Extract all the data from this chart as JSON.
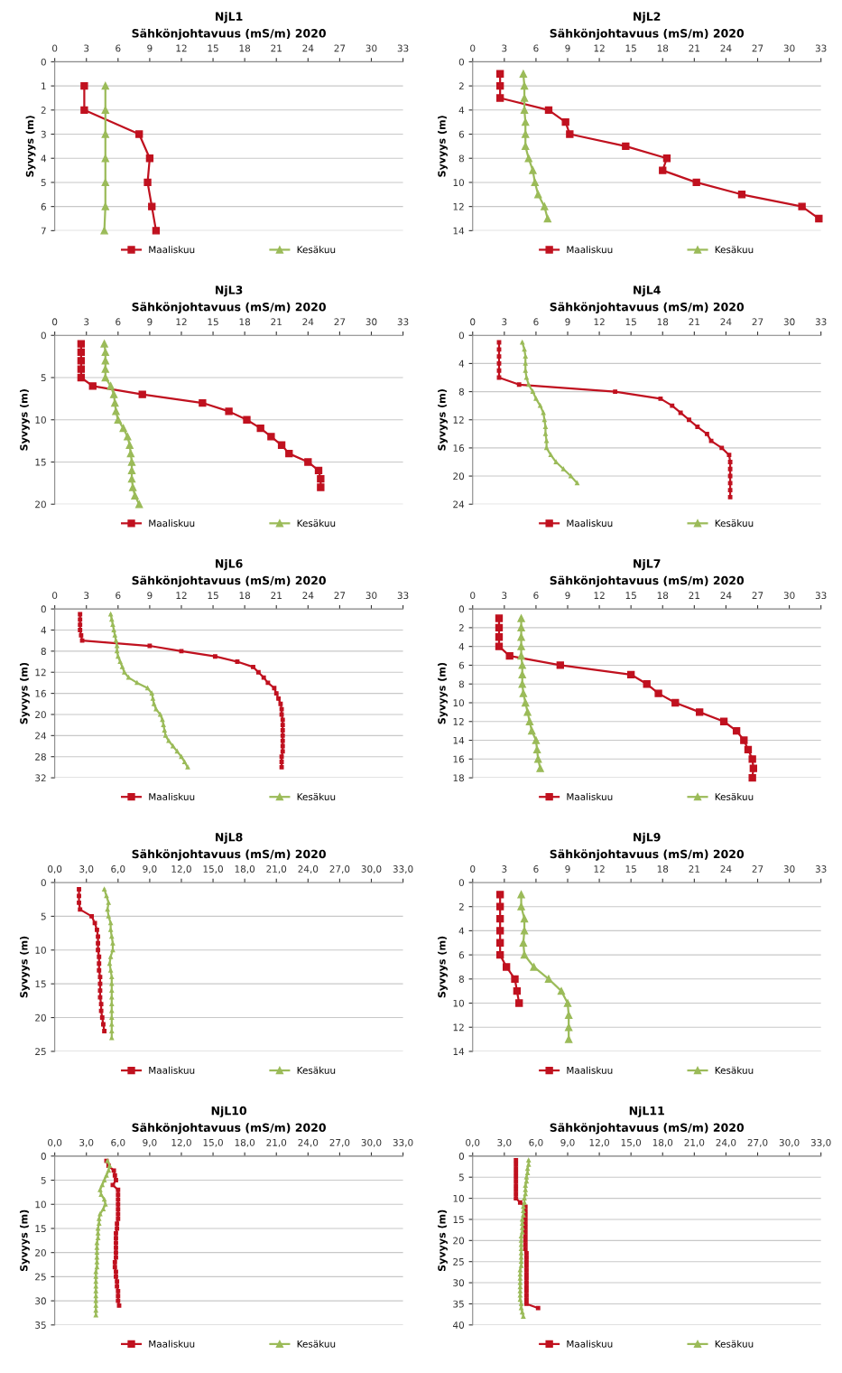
{
  "chart_data": [
    {
      "type": "line",
      "title": "NjL1",
      "subtitle": "Sähkönjohtavuus (mS/m) 2020",
      "ylabel": "Syvyys (m)",
      "xlim": [
        0,
        33
      ],
      "xticks": [
        0,
        3,
        6,
        9,
        12,
        15,
        18,
        21,
        24,
        27,
        30,
        33
      ],
      "ylim": [
        7,
        0
      ],
      "yticks": [
        0,
        1,
        2,
        3,
        4,
        5,
        6,
        7
      ],
      "grid": "y",
      "legend": "bottom",
      "series": [
        {
          "name": "Maaliskuu",
          "color": "#c0111f",
          "marker": "square",
          "x": [
            2.8,
            2.8,
            8,
            9,
            8.8,
            9.2,
            9.6
          ],
          "values": [
            1,
            2,
            3,
            4,
            5,
            6,
            7
          ]
        },
        {
          "name": "Kesäkuu",
          "color": "#9bbb59",
          "marker": "triangle",
          "x": [
            4.8,
            4.8,
            4.8,
            4.8,
            4.8,
            4.8,
            4.7
          ],
          "values": [
            1,
            2,
            3,
            4,
            5,
            6,
            7
          ]
        }
      ]
    },
    {
      "type": "line",
      "title": "NjL2",
      "subtitle": "Sähkönjohtavuus (mS/m) 2020",
      "ylabel": "Syvyys (m)",
      "xlim": [
        0,
        33
      ],
      "xticks": [
        0,
        3,
        6,
        9,
        12,
        15,
        18,
        21,
        24,
        27,
        30,
        33
      ],
      "ylim": [
        14,
        0
      ],
      "yticks": [
        0,
        2,
        4,
        6,
        8,
        10,
        12,
        14
      ],
      "grid": "y",
      "legend": "bottom",
      "series": [
        {
          "name": "Maaliskuu",
          "color": "#c0111f",
          "marker": "square",
          "x": [
            2.6,
            2.6,
            2.6,
            7.2,
            8.8,
            9.2,
            14.5,
            18.4,
            18.0,
            21.2,
            25.5,
            31.2,
            32.8
          ],
          "values": [
            1,
            2,
            3,
            4,
            5,
            6,
            7,
            8,
            9,
            10,
            11,
            12,
            13
          ]
        },
        {
          "name": "Kesäkuu",
          "color": "#9bbb59",
          "marker": "triangle",
          "x": [
            4.8,
            4.9,
            4.9,
            4.9,
            5.0,
            5.0,
            5.0,
            5.3,
            5.7,
            5.9,
            6.2,
            6.8,
            7.1
          ],
          "values": [
            1,
            2,
            3,
            4,
            5,
            6,
            7,
            8,
            9,
            10,
            11,
            12,
            13
          ]
        }
      ]
    },
    {
      "type": "line",
      "title": "NjL3",
      "subtitle": "Sähkönjohtavuus (mS/m) 2020",
      "ylabel": "Syvyys (m)",
      "xlim": [
        0,
        33
      ],
      "xticks": [
        0,
        3,
        6,
        9,
        12,
        15,
        18,
        21,
        24,
        27,
        30,
        33
      ],
      "ylim": [
        20,
        0
      ],
      "yticks": [
        0,
        5,
        10,
        15,
        20
      ],
      "grid": "y",
      "legend": "bottom",
      "series": [
        {
          "name": "Maaliskuu",
          "color": "#c0111f",
          "marker": "square",
          "x": [
            2.5,
            2.5,
            2.5,
            2.5,
            2.5,
            3.6,
            8.3,
            14.0,
            16.5,
            18.2,
            19.5,
            20.5,
            21.5,
            22.2,
            24.0,
            25.0,
            25.2,
            25.2
          ],
          "values": [
            1,
            2,
            3,
            4,
            5,
            6,
            7,
            8,
            9,
            10,
            11,
            12,
            13,
            14,
            15,
            16,
            17,
            18
          ]
        },
        {
          "name": "Kesäkuu",
          "color": "#9bbb59",
          "marker": "triangle",
          "x": [
            4.7,
            4.8,
            4.8,
            4.8,
            4.8,
            5.3,
            5.6,
            5.7,
            5.8,
            6.0,
            6.5,
            6.9,
            7.1,
            7.2,
            7.3,
            7.3,
            7.3,
            7.4,
            7.6,
            8.0
          ],
          "values": [
            1,
            2,
            3,
            4,
            5,
            6,
            7,
            8,
            9,
            10,
            11,
            12,
            13,
            14,
            15,
            16,
            17,
            18,
            19,
            20
          ]
        }
      ]
    },
    {
      "type": "line",
      "title": "NjL4",
      "subtitle": "Sähkönjohtavuus (mS/m) 2020",
      "ylabel": "Syvyys (m)",
      "xlim": [
        0,
        33
      ],
      "xticks": [
        0,
        3,
        6,
        9,
        12,
        15,
        18,
        21,
        24,
        27,
        30,
        33
      ],
      "ylim": [
        24,
        0
      ],
      "yticks": [
        0,
        4,
        8,
        12,
        16,
        20,
        24
      ],
      "grid": "y",
      "legend": "bottom",
      "series": [
        {
          "name": "Maaliskuu",
          "color": "#c0111f",
          "marker": "square",
          "x": [
            2.5,
            2.5,
            2.5,
            2.5,
            2.5,
            2.5,
            4.4,
            13.5,
            17.8,
            18.9,
            19.7,
            20.5,
            21.3,
            22.2,
            22.6,
            23.6,
            24.3,
            24.4,
            24.4,
            24.4,
            24.4,
            24.4,
            24.4
          ],
          "values": [
            1,
            2,
            3,
            4,
            5,
            6,
            7,
            8,
            9,
            10,
            11,
            12,
            13,
            14,
            15,
            16,
            17,
            18,
            19,
            20,
            21,
            22,
            23
          ]
        },
        {
          "name": "Kesäkuu",
          "color": "#9bbb59",
          "marker": "triangle",
          "x": [
            4.7,
            4.9,
            5.0,
            5.0,
            5.0,
            5.1,
            5.3,
            5.7,
            6.0,
            6.4,
            6.7,
            6.8,
            6.9,
            6.9,
            7.0,
            7.0,
            7.4,
            7.9,
            8.6,
            9.3,
            9.9
          ],
          "values": [
            1,
            2,
            3,
            4,
            5,
            6,
            7,
            8,
            9,
            10,
            11,
            12,
            13,
            14,
            15,
            16,
            17,
            18,
            19,
            20,
            21
          ]
        }
      ]
    },
    {
      "type": "line",
      "title": "NjL6",
      "subtitle": "Sähkönjohtavuus (mS/m) 2020",
      "ylabel": "Syvyys (m)",
      "xlim": [
        0,
        33
      ],
      "xticks": [
        0,
        3,
        6,
        9,
        12,
        15,
        18,
        21,
        24,
        27,
        30,
        33
      ],
      "ylim": [
        32,
        0
      ],
      "yticks": [
        0,
        4,
        8,
        12,
        16,
        20,
        24,
        28,
        32
      ],
      "grid": "y",
      "legend": "bottom",
      "series": [
        {
          "name": "Maaliskuu",
          "color": "#c0111f",
          "marker": "square",
          "x": [
            2.4,
            2.4,
            2.4,
            2.4,
            2.5,
            2.6,
            9.0,
            12.0,
            15.2,
            17.3,
            18.8,
            19.3,
            19.8,
            20.2,
            20.8,
            21.0,
            21.2,
            21.4,
            21.5,
            21.5,
            21.6,
            21.6,
            21.6,
            21.6,
            21.6,
            21.6,
            21.6,
            21.5,
            21.5,
            21.5
          ],
          "values": [
            1,
            2,
            3,
            4,
            5,
            6,
            7,
            8,
            9,
            10,
            11,
            12,
            13,
            14,
            15,
            16,
            17,
            18,
            19,
            20,
            21,
            22,
            23,
            24,
            25,
            26,
            27,
            28,
            29,
            30
          ]
        },
        {
          "name": "Kesäkuu",
          "color": "#9bbb59",
          "marker": "triangle",
          "x": [
            5.3,
            5.4,
            5.5,
            5.6,
            5.7,
            5.8,
            5.9,
            5.9,
            6.0,
            6.2,
            6.4,
            6.6,
            7.0,
            7.8,
            8.8,
            9.2,
            9.3,
            9.4,
            9.6,
            10.0,
            10.2,
            10.3,
            10.4,
            10.5,
            10.8,
            11.2,
            11.6,
            12.0,
            12.3,
            12.6
          ],
          "values": [
            1,
            2,
            3,
            4,
            5,
            6,
            7,
            8,
            9,
            10,
            11,
            12,
            13,
            14,
            15,
            16,
            17,
            18,
            19,
            20,
            21,
            22,
            23,
            24,
            25,
            26,
            27,
            28,
            29,
            30
          ]
        }
      ]
    },
    {
      "type": "line",
      "title": "NjL7",
      "subtitle": "Sähkönjohtavuus (mS/m) 2020",
      "ylabel": "Syvyys (m)",
      "xlim": [
        0,
        33
      ],
      "xticks": [
        0,
        3,
        6,
        9,
        12,
        15,
        18,
        21,
        24,
        27,
        30,
        33
      ],
      "ylim": [
        18,
        0
      ],
      "yticks": [
        0,
        2,
        4,
        6,
        8,
        10,
        12,
        14,
        16,
        18
      ],
      "grid": "y",
      "legend": "bottom",
      "series": [
        {
          "name": "Maaliskuu",
          "color": "#c0111f",
          "marker": "square",
          "x": [
            2.5,
            2.5,
            2.5,
            2.5,
            3.5,
            8.3,
            15.0,
            16.5,
            17.6,
            19.2,
            21.5,
            23.8,
            25.0,
            25.7,
            26.1,
            26.5,
            26.6,
            26.5
          ],
          "values": [
            1,
            2,
            3,
            4,
            5,
            6,
            7,
            8,
            9,
            10,
            11,
            12,
            13,
            14,
            15,
            16,
            17,
            18
          ]
        },
        {
          "name": "Kesäkuu",
          "color": "#9bbb59",
          "marker": "triangle",
          "x": [
            4.6,
            4.6,
            4.6,
            4.6,
            4.6,
            4.7,
            4.7,
            4.7,
            4.8,
            5.0,
            5.2,
            5.4,
            5.6,
            6.0,
            6.1,
            6.2,
            6.4
          ],
          "values": [
            1,
            2,
            3,
            4,
            5,
            6,
            7,
            8,
            9,
            10,
            11,
            12,
            13,
            14,
            15,
            16,
            17
          ]
        }
      ]
    },
    {
      "type": "line",
      "title": "NjL8",
      "subtitle": "Sähkönjohtavuus (mS/m) 2020",
      "ylabel": "Syvyys (m)",
      "xlim": [
        0,
        33
      ],
      "xticks": [
        {
          "value": 0,
          "label": "0,0"
        },
        {
          "value": 3,
          "label": "3,0"
        },
        {
          "value": 6,
          "label": "6,0"
        },
        {
          "value": 9,
          "label": "9,0"
        },
        {
          "value": 12,
          "label": "12,0"
        },
        {
          "value": 15,
          "label": "15,0"
        },
        {
          "value": 18,
          "label": "18,0"
        },
        {
          "value": 21,
          "label": "21,0"
        },
        {
          "value": 24,
          "label": "24,0"
        },
        {
          "value": 27,
          "label": "27,0"
        },
        {
          "value": 30,
          "label": "30,0"
        },
        {
          "value": 33,
          "label": "33,0"
        }
      ],
      "ylim": [
        25,
        0
      ],
      "yticks": [
        0,
        5,
        10,
        15,
        20,
        25
      ],
      "grid": "y",
      "legend": "bottom",
      "series": [
        {
          "name": "Maaliskuu",
          "color": "#c0111f",
          "marker": "square",
          "x": [
            2.3,
            2.3,
            2.3,
            2.4,
            3.5,
            3.8,
            4.0,
            4.1,
            4.1,
            4.1,
            4.2,
            4.2,
            4.2,
            4.3,
            4.3,
            4.3,
            4.3,
            4.4,
            4.4,
            4.5,
            4.6,
            4.7
          ],
          "values": [
            1,
            2,
            3,
            4,
            5,
            6,
            7,
            8,
            9,
            10,
            11,
            12,
            13,
            14,
            15,
            16,
            17,
            18,
            19,
            20,
            21,
            22
          ]
        },
        {
          "name": "Kesäkuu",
          "color": "#9bbb59",
          "marker": "triangle",
          "x": [
            4.7,
            4.9,
            5.1,
            5.0,
            5.1,
            5.3,
            5.3,
            5.4,
            5.5,
            5.5,
            5.3,
            5.2,
            5.3,
            5.4,
            5.4,
            5.4,
            5.4,
            5.4,
            5.4,
            5.4,
            5.4,
            5.4,
            5.4
          ],
          "values": [
            1,
            2,
            3,
            4,
            5,
            6,
            7,
            8,
            9,
            10,
            11,
            12,
            13,
            14,
            15,
            16,
            17,
            18,
            19,
            20,
            21,
            22,
            23
          ]
        }
      ]
    },
    {
      "type": "line",
      "title": "NjL9",
      "subtitle": "Sähkönjohtavuus (mS/m) 2020",
      "ylabel": "Syvyys (m)",
      "xlim": [
        0,
        33
      ],
      "xticks": [
        0,
        3,
        6,
        9,
        12,
        15,
        18,
        21,
        24,
        27,
        30,
        33
      ],
      "ylim": [
        14,
        0
      ],
      "yticks": [
        0,
        2,
        4,
        6,
        8,
        10,
        12,
        14
      ],
      "grid": "y",
      "legend": "bottom",
      "series": [
        {
          "name": "Maaliskuu",
          "color": "#c0111f",
          "marker": "square",
          "x": [
            2.6,
            2.6,
            2.6,
            2.6,
            2.6,
            2.6,
            3.2,
            4.0,
            4.2,
            4.4
          ],
          "values": [
            1,
            2,
            3,
            4,
            5,
            6,
            7,
            8,
            9,
            10
          ]
        },
        {
          "name": "Kesäkuu",
          "color": "#9bbb59",
          "marker": "triangle",
          "x": [
            4.6,
            4.6,
            4.9,
            4.9,
            4.8,
            4.9,
            5.8,
            7.2,
            8.4,
            9.0,
            9.1,
            9.1,
            9.1
          ],
          "values": [
            1,
            2,
            3,
            4,
            5,
            6,
            7,
            8,
            9,
            10,
            11,
            12,
            13
          ]
        }
      ]
    },
    {
      "type": "line",
      "title": "NjL10",
      "subtitle": "Sähkönjohtavuus (mS/m) 2020",
      "ylabel": "Syvyys (m)",
      "xlim": [
        0,
        33
      ],
      "xticks": [
        {
          "value": 0,
          "label": "0,0"
        },
        {
          "value": 3,
          "label": "3,0"
        },
        {
          "value": 6,
          "label": "6,0"
        },
        {
          "value": 9,
          "label": "9,0"
        },
        {
          "value": 12,
          "label": "12,0"
        },
        {
          "value": 15,
          "label": "15,0"
        },
        {
          "value": 18,
          "label": "18,0"
        },
        {
          "value": 21,
          "label": "21,0"
        },
        {
          "value": 24,
          "label": "24,0"
        },
        {
          "value": 27,
          "label": "27,0"
        },
        {
          "value": 30,
          "label": "30,0"
        },
        {
          "value": 33,
          "label": "33,0"
        }
      ],
      "ylim": [
        35,
        0
      ],
      "yticks": [
        0,
        5,
        10,
        15,
        20,
        25,
        30,
        35
      ],
      "grid": "y",
      "legend": "bottom",
      "series": [
        {
          "name": "Maaliskuu",
          "color": "#c0111f",
          "marker": "square",
          "x": [
            4.9,
            5.1,
            5.6,
            5.7,
            5.8,
            5.5,
            6.0,
            6.0,
            6.0,
            6.0,
            6.0,
            6.0,
            6.0,
            5.9,
            5.9,
            5.8,
            5.8,
            5.8,
            5.8,
            5.8,
            5.8,
            5.7,
            5.7,
            5.8,
            5.8,
            5.9,
            5.9,
            6.0,
            6.0,
            6.0,
            6.1
          ],
          "values": [
            1,
            2,
            3,
            4,
            5,
            6,
            7,
            8,
            9,
            10,
            11,
            12,
            13,
            14,
            15,
            16,
            17,
            18,
            19,
            20,
            21,
            22,
            23,
            24,
            25,
            26,
            27,
            28,
            29,
            30,
            31
          ]
        },
        {
          "name": "Kesäkuu",
          "color": "#9bbb59",
          "marker": "triangle",
          "x": [
            5.0,
            5.2,
            5.1,
            4.9,
            4.7,
            4.5,
            4.3,
            4.4,
            4.7,
            4.8,
            4.6,
            4.3,
            4.2,
            4.2,
            4.1,
            4.1,
            4.1,
            4.0,
            4.0,
            4.0,
            4.0,
            4.0,
            4.0,
            3.9,
            3.9,
            3.9,
            3.9,
            3.9,
            3.9,
            3.9,
            3.9,
            3.9,
            3.9
          ],
          "values": [
            1,
            2,
            3,
            4,
            5,
            6,
            7,
            8,
            9,
            10,
            11,
            12,
            13,
            14,
            15,
            16,
            17,
            18,
            19,
            20,
            21,
            22,
            23,
            24,
            25,
            26,
            27,
            28,
            29,
            30,
            31,
            32,
            33
          ]
        }
      ]
    },
    {
      "type": "line",
      "title": "NjL11",
      "subtitle": "Sähkönjohtavuus (mS/m) 2020",
      "ylabel": "Syvyys (m)",
      "xlim": [
        0,
        33
      ],
      "xticks": [
        {
          "value": 0,
          "label": "0,0"
        },
        {
          "value": 3,
          "label": "3,0"
        },
        {
          "value": 6,
          "label": "6,0"
        },
        {
          "value": 9,
          "label": "9,0"
        },
        {
          "value": 12,
          "label": "12,0"
        },
        {
          "value": 15,
          "label": "15,0"
        },
        {
          "value": 18,
          "label": "18,0"
        },
        {
          "value": 21,
          "label": "21,0"
        },
        {
          "value": 24,
          "label": "24,0"
        },
        {
          "value": 27,
          "label": "27,0"
        },
        {
          "value": 30,
          "label": "30,0"
        },
        {
          "value": 33,
          "label": "33,0"
        }
      ],
      "ylim": [
        40,
        0
      ],
      "yticks": [
        0,
        5,
        10,
        15,
        20,
        25,
        30,
        35,
        40
      ],
      "grid": "y",
      "legend": "bottom",
      "series": [
        {
          "name": "Maaliskuu",
          "color": "#c0111f",
          "marker": "square",
          "x": [
            4.1,
            4.1,
            4.1,
            4.1,
            4.1,
            4.1,
            4.1,
            4.1,
            4.1,
            4.1,
            4.5,
            5.0,
            5.0,
            5.0,
            5.0,
            5.0,
            5.0,
            5.0,
            5.0,
            5.0,
            5.0,
            5.0,
            5.1,
            5.1,
            5.1,
            5.1,
            5.1,
            5.1,
            5.1,
            5.1,
            5.1,
            5.1,
            5.1,
            5.1,
            5.1,
            6.2
          ],
          "values": [
            1,
            2,
            3,
            4,
            5,
            6,
            7,
            8,
            9,
            10,
            11,
            12,
            13,
            14,
            15,
            16,
            17,
            18,
            19,
            20,
            21,
            22,
            23,
            24,
            25,
            26,
            27,
            28,
            29,
            30,
            31,
            32,
            33,
            34,
            35,
            36
          ]
        },
        {
          "name": "Kesäkuu",
          "color": "#9bbb59",
          "marker": "triangle",
          "x": [
            5.3,
            5.3,
            5.2,
            5.2,
            5.1,
            5.1,
            5.0,
            5.0,
            5.0,
            4.9,
            4.9,
            4.8,
            4.8,
            4.8,
            4.7,
            4.7,
            4.7,
            4.7,
            4.6,
            4.6,
            4.6,
            4.6,
            4.6,
            4.6,
            4.6,
            4.6,
            4.5,
            4.5,
            4.5,
            4.5,
            4.5,
            4.5,
            4.5,
            4.5,
            4.6,
            4.6,
            4.7,
            4.8
          ],
          "values": [
            1,
            2,
            3,
            4,
            5,
            6,
            7,
            8,
            9,
            10,
            11,
            12,
            13,
            14,
            15,
            16,
            17,
            18,
            19,
            20,
            21,
            22,
            23,
            24,
            25,
            26,
            27,
            28,
            29,
            30,
            31,
            32,
            33,
            34,
            35,
            36,
            37,
            38
          ]
        }
      ]
    }
  ]
}
